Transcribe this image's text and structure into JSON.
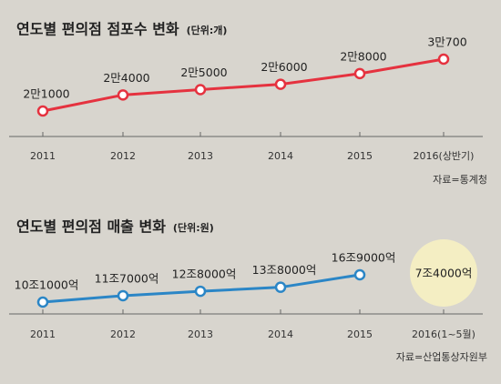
{
  "chart_data": [
    {
      "type": "line",
      "title": "연도별 편의점 점포수 변화",
      "unit": "(단위:개)",
      "categories": [
        "2011",
        "2012",
        "2013",
        "2014",
        "2015",
        "2016(상반기)"
      ],
      "values": [
        21000,
        24000,
        25000,
        26000,
        28000,
        30700
      ],
      "value_labels": [
        "2만1000",
        "2만4000",
        "2만5000",
        "2만6000",
        "2만8000",
        "3만700"
      ],
      "color": "#e5323f",
      "source": "자료=통계청"
    },
    {
      "type": "line",
      "title": "연도별 편의점 매출 변화",
      "unit": "(단위:원)",
      "categories": [
        "2011",
        "2012",
        "2013",
        "2014",
        "2015",
        "2016(1~5월)"
      ],
      "values": [
        101000,
        117000,
        128000,
        138000,
        169000,
        null
      ],
      "value_labels": [
        "10조1000억",
        "11조7000억",
        "12조8000억",
        "13조8000억",
        "16조9000억",
        null
      ],
      "partial": {
        "value": 74000,
        "label": "7조4000억",
        "color": "#f4eec3"
      },
      "color": "#2b86c6",
      "source": "자료=산업통상자원부"
    }
  ]
}
